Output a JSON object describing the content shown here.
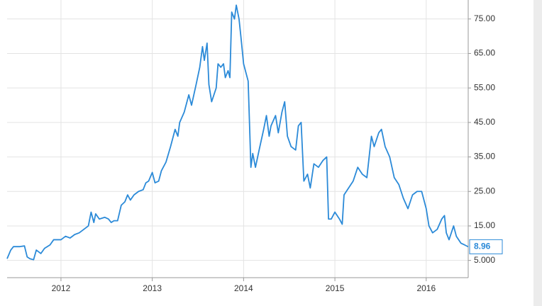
{
  "chart_data": {
    "type": "line",
    "x": [
      2011.41,
      2011.45,
      2011.48,
      2011.55,
      2011.6,
      2011.63,
      2011.66,
      2011.7,
      2011.73,
      2011.78,
      2011.82,
      2011.88,
      2011.92,
      2012.0,
      2012.05,
      2012.1,
      2012.15,
      2012.2,
      2012.25,
      2012.3,
      2012.33,
      2012.36,
      2012.38,
      2012.42,
      2012.48,
      2012.52,
      2012.55,
      2012.58,
      2012.62,
      2012.66,
      2012.7,
      2012.73,
      2012.76,
      2012.8,
      2012.85,
      2012.9,
      2012.93,
      2012.96,
      2013.0,
      2013.03,
      2013.07,
      2013.1,
      2013.15,
      2013.2,
      2013.25,
      2013.28,
      2013.3,
      2013.35,
      2013.4,
      2013.43,
      2013.48,
      2013.52,
      2013.55,
      2013.57,
      2013.6,
      2013.62,
      2013.65,
      2013.7,
      2013.72,
      2013.75,
      2013.78,
      2013.8,
      2013.83,
      2013.85,
      2013.87,
      2013.9,
      2013.92,
      2013.95,
      2013.97,
      2014.0,
      2014.05,
      2014.08,
      2014.1,
      2014.13,
      2014.17,
      2014.22,
      2014.25,
      2014.28,
      2014.3,
      2014.35,
      2014.38,
      2014.42,
      2014.45,
      2014.48,
      2014.52,
      2014.57,
      2014.6,
      2014.63,
      2014.66,
      2014.7,
      2014.73,
      2014.77,
      2014.82,
      2014.87,
      2014.91,
      2014.93,
      2014.96,
      2015.0,
      2015.05,
      2015.08,
      2015.1,
      2015.15,
      2015.2,
      2015.25,
      2015.3,
      2015.35,
      2015.4,
      2015.43,
      2015.48,
      2015.51,
      2015.55,
      2015.6,
      2015.65,
      2015.7,
      2015.75,
      2015.8,
      2015.85,
      2015.9,
      2015.95,
      2016.0,
      2016.03,
      2016.07,
      2016.12,
      2016.17,
      2016.2,
      2016.22,
      2016.25,
      2016.3,
      2016.33,
      2016.38,
      2016.42,
      2016.46
    ],
    "series": [
      {
        "color": "#2b8ad8",
        "values": [
          5.5,
          8,
          9,
          9,
          9.2,
          6,
          5.5,
          5.2,
          8,
          7,
          8.5,
          9.5,
          11,
          11,
          12,
          11.5,
          12.5,
          13,
          14,
          15,
          19,
          16,
          18.5,
          17,
          17.5,
          17,
          16,
          16.5,
          16.5,
          21,
          22,
          24,
          22.5,
          24,
          25,
          25.5,
          27.5,
          28,
          30.5,
          27.5,
          28,
          31,
          33.5,
          38,
          43,
          41,
          45,
          48,
          53,
          50,
          56,
          61,
          67,
          63,
          68,
          56,
          51,
          55,
          62,
          61,
          62,
          58,
          60,
          58,
          77,
          75,
          79,
          75,
          70,
          62,
          57,
          32,
          36,
          32,
          37,
          43,
          47,
          41,
          44,
          47,
          42,
          48,
          51,
          41,
          38,
          37,
          44,
          45,
          28,
          30,
          26,
          33,
          32,
          34,
          35,
          17,
          17,
          19,
          17,
          15.5,
          24,
          26,
          28,
          32,
          30,
          29,
          41,
          38,
          42,
          43,
          38,
          35,
          29,
          27,
          23,
          20,
          24,
          25,
          25,
          20,
          15,
          13,
          14,
          17,
          18,
          13,
          11,
          15,
          12,
          10,
          9.5,
          8.96
        ]
      }
    ],
    "xlim": [
      2011.41,
      2016.46
    ],
    "xticks": [
      2012,
      2013,
      2014,
      2015,
      2016
    ],
    "ylim": [
      0,
      80.5
    ],
    "yticks": [
      {
        "value": 5,
        "label": "5.000"
      },
      {
        "value": 15,
        "label": "15.00"
      },
      {
        "value": 25,
        "label": "25.00"
      },
      {
        "value": 35,
        "label": "35.00"
      },
      {
        "value": 45,
        "label": "45.00"
      },
      {
        "value": 55,
        "label": "55.00"
      },
      {
        "value": 65,
        "label": "65.00"
      },
      {
        "value": 75,
        "label": "75.00"
      }
    ],
    "grid": true
  }
}
